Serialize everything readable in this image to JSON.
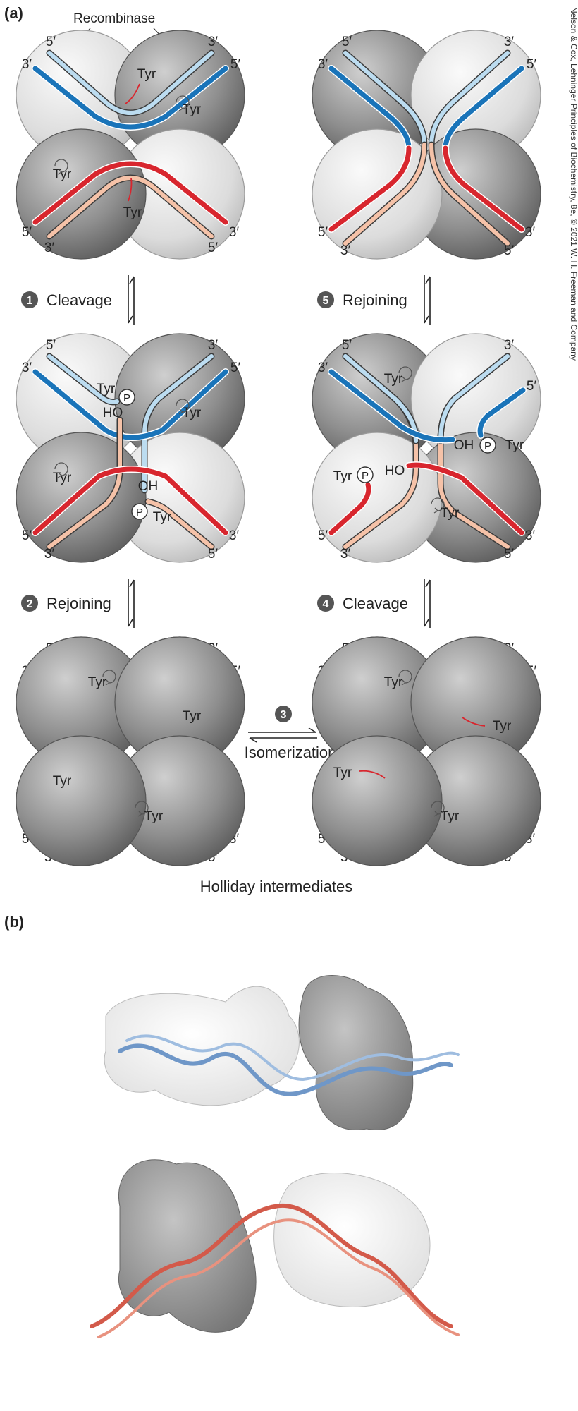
{
  "panels": {
    "a": "(a)",
    "b": "(b)"
  },
  "labels": {
    "recombinase": "Recombinase",
    "tyr": "Tyr",
    "five_prime": "5′",
    "three_prime": "3′",
    "ho": "HO",
    "oh": "OH",
    "p": "P",
    "holliday": "Holliday intermediates"
  },
  "steps": {
    "s1": {
      "num": "1",
      "label": "Cleavage"
    },
    "s2": {
      "num": "2",
      "label": "Rejoining"
    },
    "s3": {
      "num": "3",
      "label": "Isomerization"
    },
    "s4": {
      "num": "4",
      "label": "Cleavage"
    },
    "s5": {
      "num": "5",
      "label": "Rejoining"
    }
  },
  "credit": "Nelson & Cox, Lehninger Principles of Biochemistry, 8e, © 2021 W. H. Freeman and Company",
  "colors": {
    "dark_blue": "#1a74b9",
    "light_blue": "#bcdcf0",
    "red": "#d8262e",
    "peach": "#f5c2a8",
    "light_sphere": "#d9d9d9",
    "dark_sphere": "#7d7d7d"
  }
}
